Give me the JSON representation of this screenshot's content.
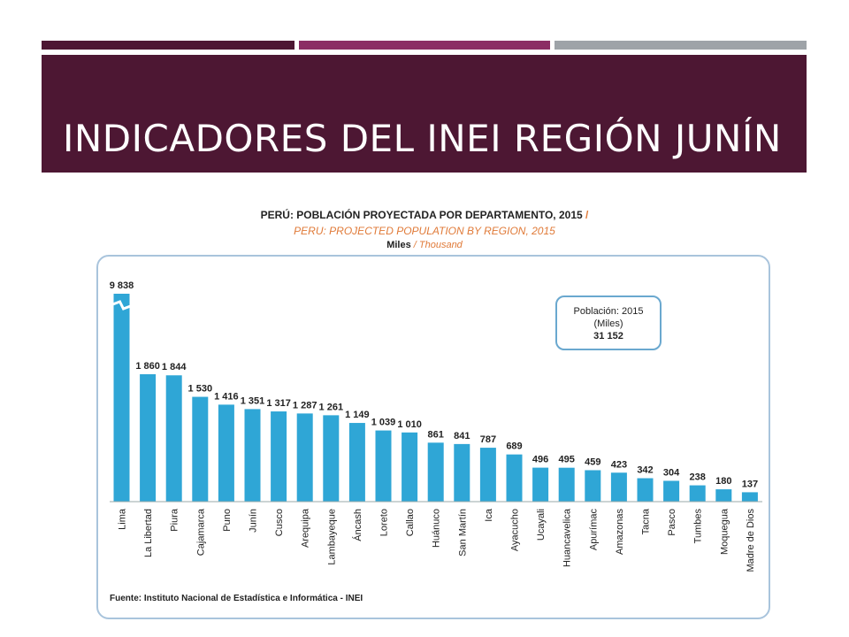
{
  "slide": {
    "title": "INDICADORES DEL INEI REGIÓN JUNÍN",
    "colors": {
      "header_bg": "#4d1733",
      "strip1": "#4d1733",
      "strip2": "#8b2d64",
      "strip3": "#9ea3a8",
      "bar": "#2fa6d6"
    }
  },
  "chart_header": {
    "title_es": "PERÚ: POBLACIÓN PROYECTADA POR DEPARTAMENTO, 2015",
    "title_slash": "/",
    "title_en": "PERU: PROJECTED POPULATION BY REGION, 2015",
    "units_es": "Miles",
    "units_slash": " / ",
    "units_en": "Thousand"
  },
  "legend_box": {
    "line1": "Población: 2015",
    "line2": "(Miles)",
    "total": "31 152"
  },
  "source": "Fuente: Instituto Nacional de Estadística e Informática - INEI",
  "chart_data": {
    "type": "bar",
    "title": "PERÚ: POBLACIÓN PROYECTADA POR DEPARTAMENTO, 2015",
    "categories": [
      "Lima",
      "La Libertad",
      "Piura",
      "Cajamarca",
      "Puno",
      "Junín",
      "Cusco",
      "Arequipa",
      "Lambayeque",
      "Áncash",
      "Loreto",
      "Callao",
      "Huánuco",
      "San Martín",
      "Ica",
      "Ayacucho",
      "Ucayali",
      "Huancavelica",
      "Apurímac",
      "Amazonas",
      "Tacna",
      "Pasco",
      "Tumbes",
      "Moquegua",
      "Madre de Dios"
    ],
    "values": [
      9838,
      1860,
      1844,
      1530,
      1416,
      1351,
      1317,
      1287,
      1261,
      1149,
      1039,
      1010,
      861,
      841,
      787,
      689,
      496,
      495,
      459,
      423,
      342,
      304,
      238,
      180,
      137
    ],
    "value_labels": [
      "9 838",
      "1 860",
      "1 844",
      "1 530",
      "1 416",
      "1 351",
      "1 317",
      "1 287",
      "1 261",
      "1 149",
      "1 039",
      "1 010",
      "861",
      "841",
      "787",
      "689",
      "496",
      "495",
      "459",
      "423",
      "342",
      "304",
      "238",
      "180",
      "137"
    ],
    "broken_axis_bar": "Lima",
    "grid": false,
    "legend": "none"
  }
}
